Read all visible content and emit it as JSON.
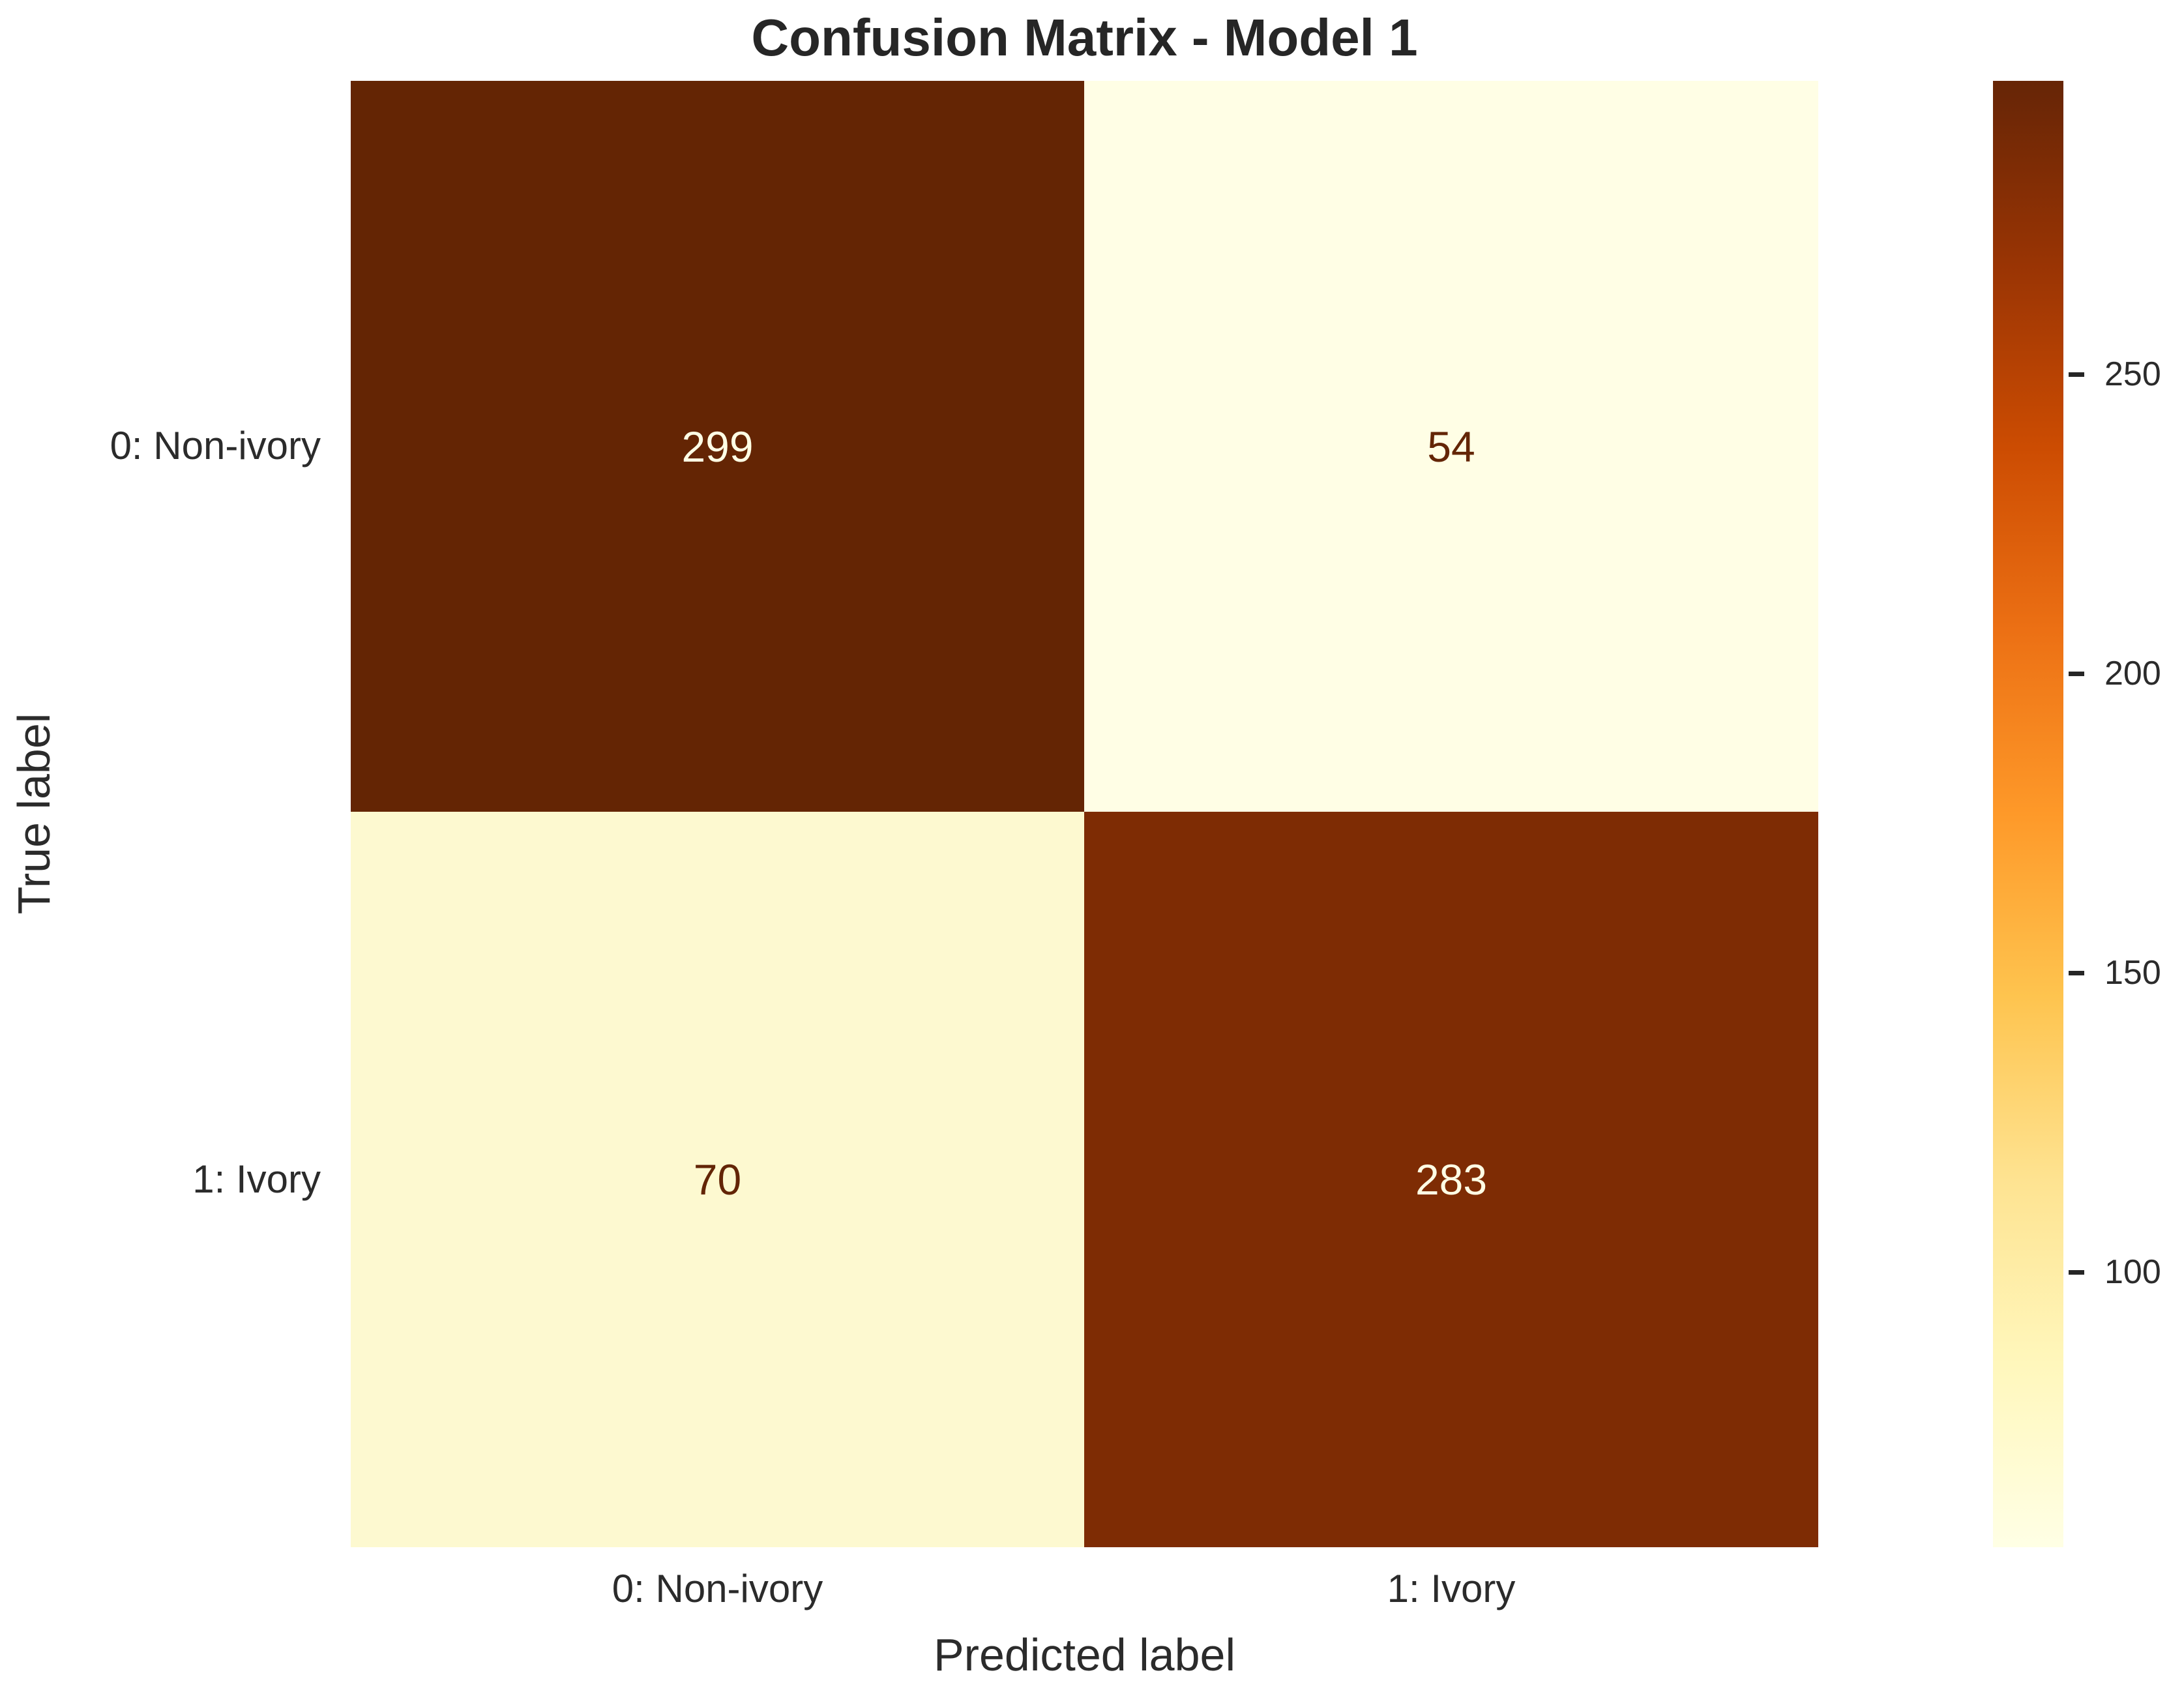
{
  "chart_data": {
    "type": "heatmap",
    "title": "Confusion Matrix - Model 1",
    "xlabel": "Predicted label",
    "ylabel": "True label",
    "x_categories": [
      "0: Non-ivory",
      "1: Ivory"
    ],
    "y_categories": [
      "0: Non-ivory",
      "1: Ivory"
    ],
    "matrix": [
      [
        299,
        54
      ],
      [
        70,
        283
      ]
    ],
    "annotations": [
      "299",
      "54",
      "70",
      "283"
    ],
    "colormap": "YlOrBr",
    "grid": false,
    "legend": "none",
    "colorbar": {
      "position": "right",
      "vmin": 54,
      "vmax": 299,
      "ticks": [
        100,
        150,
        200,
        250
      ]
    },
    "colors": {
      "cell_true0_pred0": "#642504",
      "cell_true0_pred1": "#fffee5",
      "cell_true1_pred0": "#fdf9d0",
      "cell_true1_pred1": "#7e2c04",
      "annotation_on_dark": "#ffffe5",
      "annotation_on_light": "#632506",
      "text": "#262626",
      "background": "#ffffff",
      "colorbar_top": "#662506",
      "colorbar_bottom": "#ffffe5"
    }
  }
}
